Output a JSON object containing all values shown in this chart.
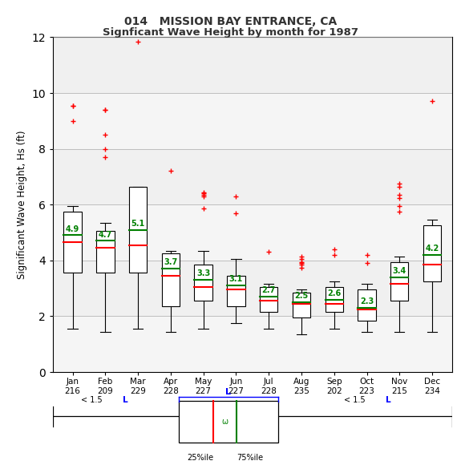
{
  "title1": "014   MISSION BAY ENTRANCE, CA",
  "title2": "Signficant Wave Height by month for 1987",
  "ylabel": "Significant Wave Height, Hs (ft)",
  "months": [
    "Jan",
    "Feb",
    "Mar",
    "Apr",
    "May",
    "Jun",
    "Jul",
    "Aug",
    "Sep",
    "Oct",
    "Nov",
    "Dec"
  ],
  "counts": [
    216,
    209,
    229,
    228,
    227,
    227,
    228,
    235,
    202,
    223,
    215,
    234
  ],
  "ylim": [
    0,
    12
  ],
  "yticks": [
    0,
    2,
    4,
    6,
    8,
    10,
    12
  ],
  "box_facecolor": "white",
  "box_edgecolor": "black",
  "whisker_color": "black",
  "median_color": "red",
  "mean_color": "green",
  "outlier_color": "red",
  "q1": [
    3.55,
    3.55,
    3.55,
    2.35,
    2.55,
    2.35,
    2.15,
    1.95,
    2.15,
    1.85,
    2.55,
    3.25
  ],
  "q3": [
    5.75,
    5.05,
    6.65,
    4.25,
    3.85,
    3.45,
    3.05,
    2.85,
    3.05,
    2.95,
    3.95,
    5.25
  ],
  "medians": [
    4.65,
    4.45,
    4.55,
    3.45,
    3.05,
    2.95,
    2.55,
    2.45,
    2.45,
    2.25,
    3.15,
    3.85
  ],
  "means": [
    4.9,
    4.7,
    5.1,
    3.7,
    3.3,
    3.1,
    2.7,
    2.5,
    2.6,
    2.3,
    3.4,
    4.2
  ],
  "whisker_low": [
    1.55,
    1.45,
    1.55,
    1.45,
    1.55,
    1.75,
    1.55,
    1.35,
    1.55,
    1.45,
    1.45,
    1.45
  ],
  "whisker_high": [
    5.95,
    5.35,
    6.65,
    4.35,
    4.35,
    4.05,
    3.15,
    2.95,
    3.25,
    3.15,
    4.15,
    5.45
  ],
  "outliers_above": [
    [
      9.0,
      9.55,
      9.55
    ],
    [
      7.7,
      8.0,
      8.5,
      9.4,
      9.4
    ],
    [
      11.85
    ],
    [
      7.2
    ],
    [
      5.85,
      6.3,
      6.35,
      6.4,
      6.45
    ],
    [
      5.7,
      6.3
    ],
    [
      4.3
    ],
    [
      3.75,
      3.85,
      3.9,
      3.95,
      4.05,
      4.15
    ],
    [
      4.2,
      4.4
    ],
    [
      3.9,
      4.2
    ],
    [
      5.75,
      5.95,
      6.25,
      6.35,
      6.65,
      6.75
    ],
    [
      9.7
    ]
  ],
  "bg_color": "#e8e8e8",
  "stripe_color": "#f5f5f5",
  "stripe_ranges": [
    [
      0,
      2
    ],
    [
      4,
      6
    ],
    [
      8,
      10
    ]
  ],
  "plot_bg": "#f0f0f0"
}
